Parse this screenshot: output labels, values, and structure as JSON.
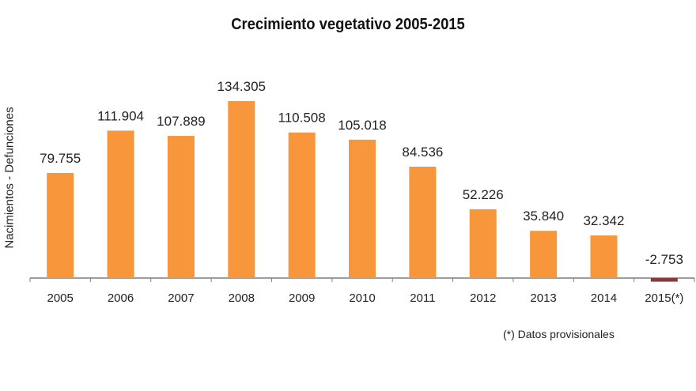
{
  "chart_data": {
    "type": "bar",
    "title": "Crecimiento vegetativo 2005-2015",
    "xlabel": "",
    "ylabel": "Nacimientos - Defunciones",
    "categories": [
      "2005",
      "2006",
      "2007",
      "2008",
      "2009",
      "2010",
      "2011",
      "2012",
      "2013",
      "2014",
      "2015(*)"
    ],
    "values": [
      79755,
      111904,
      107889,
      134305,
      110508,
      105018,
      84536,
      52226,
      35840,
      32342,
      -2753
    ],
    "value_labels": [
      "79.755",
      "111.904",
      "107.889",
      "134.305",
      "110.508",
      "105.018",
      "84.536",
      "52.226",
      "35.840",
      "32.342",
      "-2.753"
    ],
    "ylim": [
      -3000,
      140000
    ],
    "grid": false,
    "legend": "none",
    "colors": {
      "positive": "#f7963a",
      "negative": "#8b3a3a",
      "axis": "#7f7f7f"
    },
    "annotations": [
      "(*)  Datos provisionales"
    ]
  }
}
